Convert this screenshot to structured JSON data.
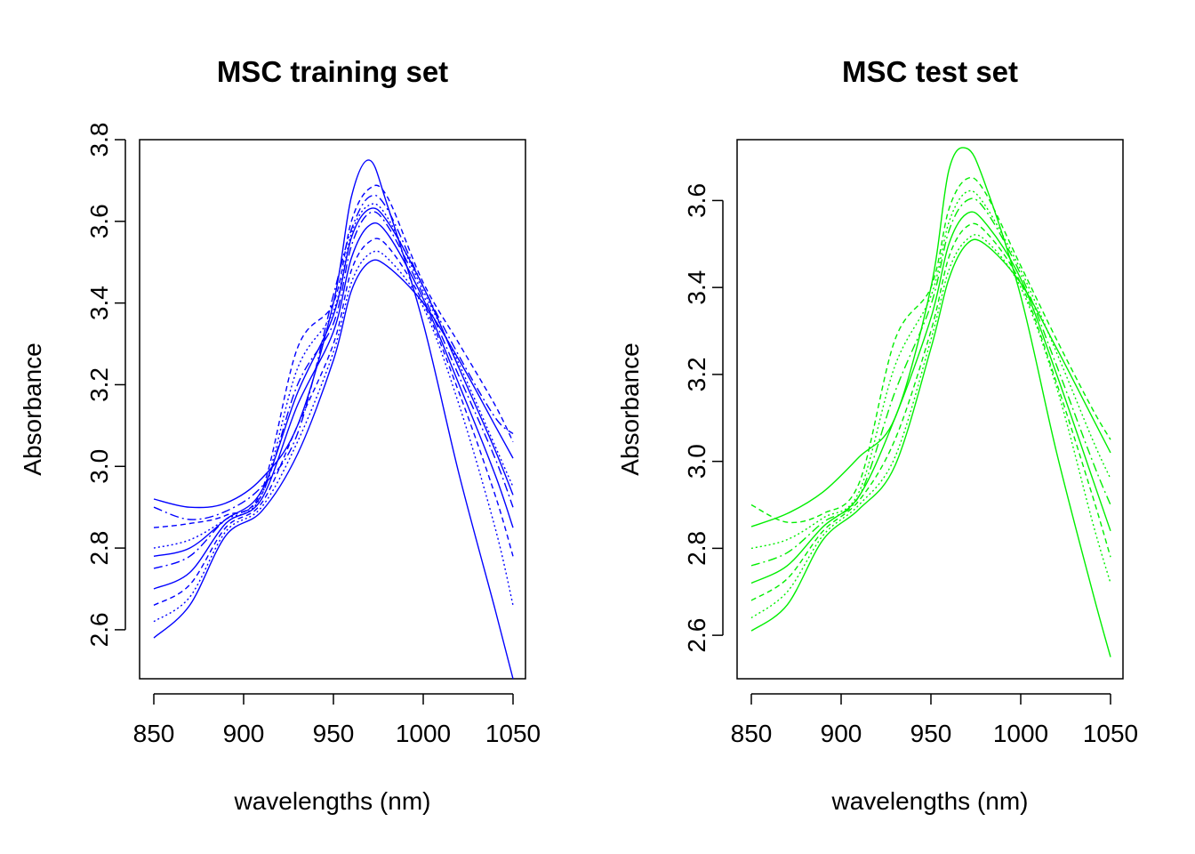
{
  "chart_data": [
    {
      "type": "line",
      "title": "MSC training set",
      "xlabel": "wavelengths (nm)",
      "ylabel": "Absorbance",
      "x_ticks": [
        850,
        900,
        950,
        1000,
        1050
      ],
      "y_ticks": [
        2.6,
        2.8,
        3.0,
        3.2,
        3.4,
        3.6,
        3.8
      ],
      "xlim": [
        850,
        1050
      ],
      "ylim": [
        2.48,
        3.8
      ],
      "color": "#0000ff",
      "grid": false,
      "x": [
        850,
        870,
        890,
        910,
        930,
        950,
        960,
        970,
        980,
        1000,
        1020,
        1040,
        1050
      ],
      "series": [
        {
          "values": [
            2.92,
            2.9,
            2.91,
            2.97,
            3.1,
            3.4,
            3.66,
            3.75,
            3.64,
            3.35,
            2.98,
            2.65,
            2.48
          ]
        },
        {
          "values": [
            2.85,
            2.86,
            2.88,
            2.94,
            3.29,
            3.4,
            3.6,
            3.68,
            3.66,
            3.45,
            3.3,
            3.15,
            3.06
          ]
        },
        {
          "values": [
            2.8,
            2.82,
            2.87,
            2.93,
            3.24,
            3.38,
            3.57,
            3.64,
            3.61,
            3.43,
            3.25,
            3.05,
            2.95
          ]
        },
        {
          "values": [
            2.75,
            2.78,
            2.87,
            2.93,
            3.2,
            3.35,
            3.54,
            3.62,
            3.59,
            3.42,
            3.22,
            3.02,
            2.9
          ]
        },
        {
          "values": [
            2.7,
            2.74,
            2.86,
            2.92,
            3.15,
            3.33,
            3.51,
            3.59,
            3.57,
            3.41,
            3.2,
            2.98,
            2.85
          ]
        },
        {
          "values": [
            2.66,
            2.71,
            2.85,
            2.91,
            3.1,
            3.3,
            3.48,
            3.55,
            3.54,
            3.4,
            3.18,
            2.93,
            2.78
          ]
        },
        {
          "values": [
            2.62,
            2.68,
            2.84,
            2.9,
            3.06,
            3.28,
            3.45,
            3.52,
            3.51,
            3.39,
            3.15,
            2.85,
            2.66
          ]
        },
        {
          "values": [
            2.58,
            2.66,
            2.83,
            2.89,
            3.03,
            3.26,
            3.43,
            3.5,
            3.49,
            3.4,
            3.26,
            3.1,
            3.02
          ]
        },
        {
          "values": [
            2.9,
            2.87,
            2.89,
            2.95,
            3.08,
            3.42,
            3.58,
            3.66,
            3.63,
            3.44,
            3.27,
            3.12,
            3.08
          ]
        },
        {
          "values": [
            2.78,
            2.8,
            2.87,
            2.94,
            3.18,
            3.37,
            3.56,
            3.63,
            3.6,
            3.44,
            3.24,
            3.04,
            2.93
          ]
        }
      ]
    },
    {
      "type": "line",
      "title": "MSC test set",
      "xlabel": "wavelengths (nm)",
      "ylabel": "Absorbance",
      "x_ticks": [
        850,
        900,
        950,
        1000,
        1050
      ],
      "y_ticks": [
        2.6,
        2.8,
        3.0,
        3.2,
        3.4,
        3.6
      ],
      "xlim": [
        850,
        1050
      ],
      "ylim": [
        2.5,
        3.74
      ],
      "color": "#00ee00",
      "grid": false,
      "x": [
        850,
        870,
        890,
        910,
        930,
        950,
        960,
        970,
        980,
        1000,
        1020,
        1040,
        1050
      ],
      "series": [
        {
          "values": [
            2.85,
            2.88,
            2.93,
            3.01,
            3.1,
            3.4,
            3.67,
            3.72,
            3.64,
            3.38,
            3.02,
            2.7,
            2.55
          ]
        },
        {
          "values": [
            2.9,
            2.86,
            2.88,
            2.95,
            3.28,
            3.4,
            3.58,
            3.65,
            3.62,
            3.45,
            3.28,
            3.12,
            3.05
          ]
        },
        {
          "values": [
            2.8,
            2.82,
            2.87,
            2.93,
            3.22,
            3.38,
            3.55,
            3.62,
            3.59,
            3.44,
            3.25,
            3.05,
            2.96
          ]
        },
        {
          "values": [
            2.76,
            2.79,
            2.86,
            2.92,
            3.16,
            3.36,
            3.53,
            3.6,
            3.58,
            3.43,
            3.22,
            3.0,
            2.9
          ]
        },
        {
          "values": [
            2.72,
            2.76,
            2.85,
            2.92,
            3.1,
            3.33,
            3.5,
            3.57,
            3.55,
            3.42,
            3.2,
            2.96,
            2.84
          ]
        },
        {
          "values": [
            2.68,
            2.73,
            2.84,
            2.91,
            3.05,
            3.3,
            3.47,
            3.54,
            3.53,
            3.41,
            3.18,
            2.92,
            2.78
          ]
        },
        {
          "values": [
            2.64,
            2.7,
            2.83,
            2.9,
            3.01,
            3.28,
            3.44,
            3.51,
            3.51,
            3.4,
            3.17,
            2.86,
            2.72
          ]
        },
        {
          "values": [
            2.61,
            2.67,
            2.82,
            2.89,
            2.99,
            3.26,
            3.42,
            3.5,
            3.5,
            3.41,
            3.26,
            3.1,
            3.02
          ]
        }
      ]
    }
  ]
}
